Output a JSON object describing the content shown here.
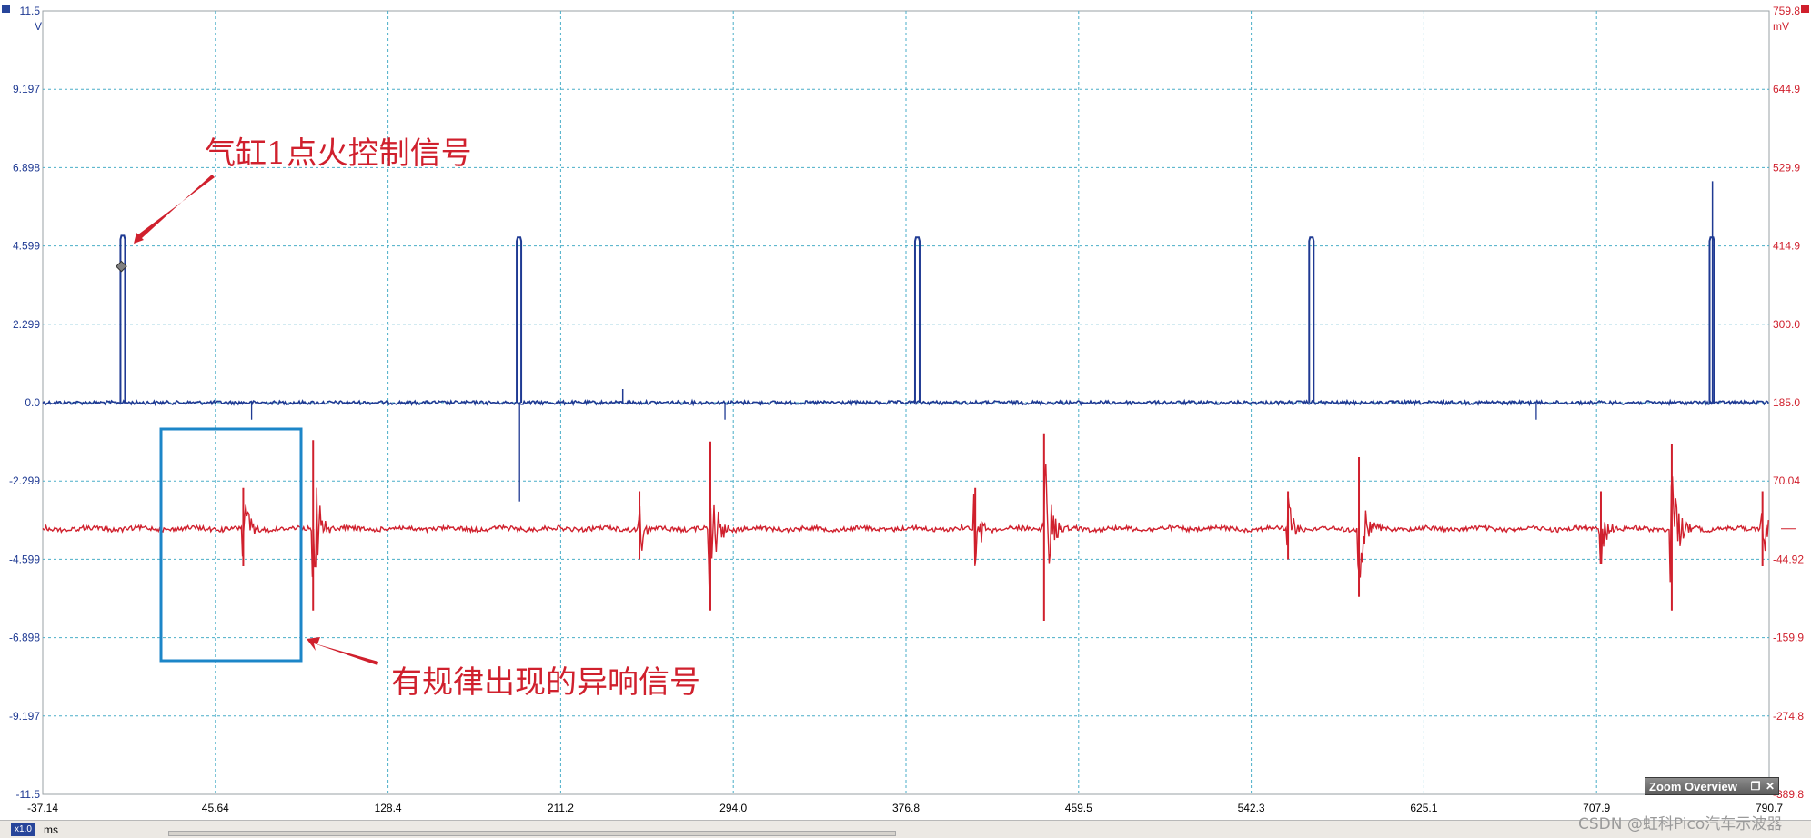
{
  "chart_data": {
    "type": "line",
    "x_unit": "ms",
    "x_ticks": [
      "-37.14",
      "45.64",
      "128.4",
      "211.2",
      "294.0",
      "376.8",
      "459.5",
      "542.3",
      "625.1",
      "707.9",
      "790.7"
    ],
    "xlim": [
      -37.14,
      790.7
    ],
    "left_axis": {
      "unit": "V",
      "color": "#1f3a93",
      "ticks": [
        "11.5",
        "9.197",
        "6.898",
        "4.599",
        "2.299",
        "0.0",
        "-2.299",
        "-4.599",
        "-6.898",
        "-9.197",
        "-11.5"
      ],
      "ylim": [
        -11.5,
        11.5
      ]
    },
    "right_axis": {
      "unit": "mV",
      "color": "#d0202d",
      "ticks": [
        "759.8",
        "644.9",
        "529.9",
        "414.9",
        "300.0",
        "185.0",
        "70.04",
        "-44.92",
        "-159.9",
        "-274.8",
        "-389.8"
      ],
      "ylim": [
        -389.8,
        759.8
      ]
    },
    "grid": true,
    "series": [
      {
        "axis": "left",
        "color": "#1f3a93",
        "baseline": 0.0,
        "pulses": [
          {
            "x": 1.0,
            "y": 4.9
          },
          {
            "x": 191.0,
            "y": 4.85
          },
          {
            "x": 382.0,
            "y": 4.85
          },
          {
            "x": 571.0,
            "y": 4.85
          },
          {
            "x": 763.0,
            "y": 4.85
          }
        ],
        "dips": [
          {
            "x": 63.0,
            "y": -0.5
          },
          {
            "x": 191.5,
            "y": -2.9
          },
          {
            "x": 290.0,
            "y": -0.5
          },
          {
            "x": 679.0,
            "y": -0.5
          }
        ],
        "spikes": [
          {
            "x": 763.5,
            "y": 6.5
          },
          {
            "x": 241.0,
            "y": 0.4
          }
        ]
      },
      {
        "axis": "right",
        "color": "#d0202d",
        "baseline": 0.0,
        "bursts": [
          {
            "x": 59.0,
            "peak": 60.0,
            "trough": -55.0
          },
          {
            "x": 92.5,
            "peak": 130.0,
            "trough": -120.0
          },
          {
            "x": 249.0,
            "peak": 55.0,
            "trough": -45.0
          },
          {
            "x": 283.0,
            "peak": 128.0,
            "trough": -120.0
          },
          {
            "x": 410.0,
            "peak": 60.0,
            "trough": -45.0
          },
          {
            "x": 443.0,
            "peak": 140.0,
            "trough": -135.0
          },
          {
            "x": 560.0,
            "peak": 55.0,
            "trough": -45.0
          },
          {
            "x": 594.0,
            "peak": 105.0,
            "trough": -100.0
          },
          {
            "x": 710.0,
            "peak": 55.0,
            "trough": -45.0
          },
          {
            "x": 744.0,
            "peak": 125.0,
            "trough": -120.0
          },
          {
            "x": 787.5,
            "peak": 55.0,
            "trough": -55.0
          }
        ]
      }
    ],
    "annotations": [
      {
        "text": "气缸1点火控制信号",
        "color": "#d0202d"
      },
      {
        "text": "有规律出现的异响信号",
        "color": "#d0202d"
      }
    ]
  },
  "zoom_overview": {
    "label": "Zoom Overview",
    "restore_icon": "restore-icon",
    "close_icon": "close-icon"
  },
  "statusbar": {
    "zoom": "x1.0",
    "unit": "ms"
  },
  "watermark": "CSDN @虹科Pico汽车示波器"
}
